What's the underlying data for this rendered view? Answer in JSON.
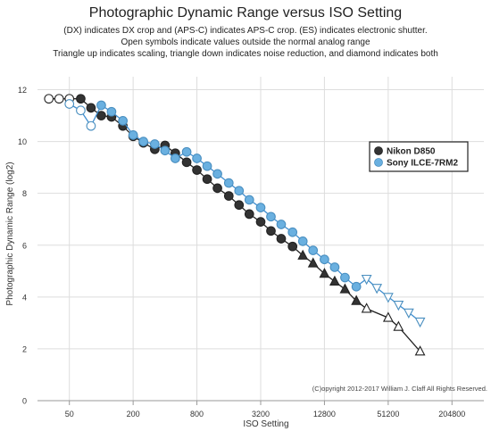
{
  "chart_data": {
    "type": "line",
    "title": "Photographic Dynamic Range versus ISO Setting",
    "subtitle": [
      "(DX) indicates DX crop and (APS-C) indicates APS-C crop. (ES) indicates electronic shutter.",
      "Open symbols indicate values outside the normal analog range",
      "Triangle up indicates scaling, triangle down indicates noise reduction, and diamond indicates both"
    ],
    "xlabel": "ISO Setting",
    "ylabel": "Photographic Dynamic Range (log2)",
    "x_scale": "log2",
    "xlim": [
      25,
      409600
    ],
    "ylim": [
      0,
      12.5
    ],
    "x_ticks": [
      50,
      200,
      800,
      3200,
      12800,
      51200,
      204800
    ],
    "x_tick_labels": [
      "50",
      "200",
      "800",
      "3200",
      "12800",
      "51200",
      "204800"
    ],
    "y_ticks": [
      0,
      2,
      4,
      6,
      8,
      10,
      12
    ],
    "y_tick_labels": [
      "0",
      "2",
      "4",
      "6",
      "8",
      "10",
      "12"
    ],
    "grid": true,
    "legend_position": "right",
    "copyright": "(C)opyright 2012-2017 William J. Claff All Rights Reserved.",
    "series": [
      {
        "name": "Nikon D850",
        "color": "#333333",
        "points": [
          {
            "iso": 32,
            "dr": 11.65,
            "marker": "open-circle"
          },
          {
            "iso": 40,
            "dr": 11.65,
            "marker": "open-circle"
          },
          {
            "iso": 50,
            "dr": 11.65,
            "marker": "open-circle"
          },
          {
            "iso": 64,
            "dr": 11.65,
            "marker": "circle"
          },
          {
            "iso": 80,
            "dr": 11.3,
            "marker": "circle"
          },
          {
            "iso": 100,
            "dr": 11.0,
            "marker": "circle"
          },
          {
            "iso": 125,
            "dr": 10.95,
            "marker": "circle"
          },
          {
            "iso": 160,
            "dr": 10.6,
            "marker": "circle"
          },
          {
            "iso": 200,
            "dr": 10.2,
            "marker": "circle"
          },
          {
            "iso": 250,
            "dr": 9.95,
            "marker": "circle"
          },
          {
            "iso": 320,
            "dr": 9.7,
            "marker": "circle"
          },
          {
            "iso": 400,
            "dr": 9.85,
            "marker": "circle"
          },
          {
            "iso": 500,
            "dr": 9.55,
            "marker": "circle"
          },
          {
            "iso": 640,
            "dr": 9.2,
            "marker": "circle"
          },
          {
            "iso": 800,
            "dr": 8.9,
            "marker": "circle"
          },
          {
            "iso": 1000,
            "dr": 8.55,
            "marker": "circle"
          },
          {
            "iso": 1250,
            "dr": 8.2,
            "marker": "circle"
          },
          {
            "iso": 1600,
            "dr": 7.9,
            "marker": "circle"
          },
          {
            "iso": 2000,
            "dr": 7.55,
            "marker": "circle"
          },
          {
            "iso": 2500,
            "dr": 7.2,
            "marker": "circle"
          },
          {
            "iso": 3200,
            "dr": 6.9,
            "marker": "circle"
          },
          {
            "iso": 4000,
            "dr": 6.55,
            "marker": "circle"
          },
          {
            "iso": 5000,
            "dr": 6.25,
            "marker": "circle"
          },
          {
            "iso": 6400,
            "dr": 5.95,
            "marker": "circle"
          },
          {
            "iso": 8000,
            "dr": 5.6,
            "marker": "triangle-up"
          },
          {
            "iso": 10000,
            "dr": 5.3,
            "marker": "triangle-up"
          },
          {
            "iso": 12800,
            "dr": 4.9,
            "marker": "triangle-up"
          },
          {
            "iso": 16000,
            "dr": 4.6,
            "marker": "triangle-up"
          },
          {
            "iso": 20000,
            "dr": 4.3,
            "marker": "triangle-up"
          },
          {
            "iso": 25600,
            "dr": 3.85,
            "marker": "triangle-up"
          },
          {
            "iso": 32000,
            "dr": 3.55,
            "marker": "open-triangle-up"
          },
          {
            "iso": 51200,
            "dr": 3.2,
            "marker": "open-triangle-up"
          },
          {
            "iso": 64000,
            "dr": 2.85,
            "marker": "open-triangle-up"
          },
          {
            "iso": 102400,
            "dr": 1.9,
            "marker": "open-triangle-up"
          }
        ]
      },
      {
        "name": "Sony ILCE-7RM2",
        "color": "#6ab0e0",
        "points": [
          {
            "iso": 50,
            "dr": 11.45,
            "marker": "open-circle"
          },
          {
            "iso": 64,
            "dr": 11.2,
            "marker": "open-circle"
          },
          {
            "iso": 80,
            "dr": 10.6,
            "marker": "open-circle"
          },
          {
            "iso": 100,
            "dr": 11.4,
            "marker": "circle"
          },
          {
            "iso": 125,
            "dr": 11.15,
            "marker": "circle"
          },
          {
            "iso": 160,
            "dr": 10.8,
            "marker": "circle"
          },
          {
            "iso": 200,
            "dr": 10.25,
            "marker": "circle"
          },
          {
            "iso": 250,
            "dr": 10.0,
            "marker": "circle"
          },
          {
            "iso": 320,
            "dr": 9.9,
            "marker": "circle"
          },
          {
            "iso": 400,
            "dr": 9.65,
            "marker": "circle"
          },
          {
            "iso": 500,
            "dr": 9.35,
            "marker": "circle"
          },
          {
            "iso": 640,
            "dr": 9.6,
            "marker": "circle"
          },
          {
            "iso": 800,
            "dr": 9.35,
            "marker": "circle"
          },
          {
            "iso": 1000,
            "dr": 9.05,
            "marker": "circle"
          },
          {
            "iso": 1250,
            "dr": 8.75,
            "marker": "circle"
          },
          {
            "iso": 1600,
            "dr": 8.4,
            "marker": "circle"
          },
          {
            "iso": 2000,
            "dr": 8.1,
            "marker": "circle"
          },
          {
            "iso": 2500,
            "dr": 7.75,
            "marker": "circle"
          },
          {
            "iso": 3200,
            "dr": 7.45,
            "marker": "circle"
          },
          {
            "iso": 4000,
            "dr": 7.1,
            "marker": "circle"
          },
          {
            "iso": 5000,
            "dr": 6.8,
            "marker": "circle"
          },
          {
            "iso": 6400,
            "dr": 6.5,
            "marker": "circle"
          },
          {
            "iso": 8000,
            "dr": 6.15,
            "marker": "circle"
          },
          {
            "iso": 10000,
            "dr": 5.8,
            "marker": "circle"
          },
          {
            "iso": 12800,
            "dr": 5.45,
            "marker": "circle"
          },
          {
            "iso": 16000,
            "dr": 5.15,
            "marker": "circle"
          },
          {
            "iso": 20000,
            "dr": 4.75,
            "marker": "circle"
          },
          {
            "iso": 25600,
            "dr": 4.4,
            "marker": "circle"
          },
          {
            "iso": 32000,
            "dr": 4.7,
            "marker": "open-triangle-down"
          },
          {
            "iso": 40000,
            "dr": 4.35,
            "marker": "open-triangle-down"
          },
          {
            "iso": 51200,
            "dr": 4.0,
            "marker": "open-triangle-down"
          },
          {
            "iso": 64000,
            "dr": 3.7,
            "marker": "open-triangle-down"
          },
          {
            "iso": 80000,
            "dr": 3.4,
            "marker": "open-triangle-down"
          },
          {
            "iso": 102400,
            "dr": 3.05,
            "marker": "open-triangle-down"
          }
        ]
      }
    ]
  }
}
